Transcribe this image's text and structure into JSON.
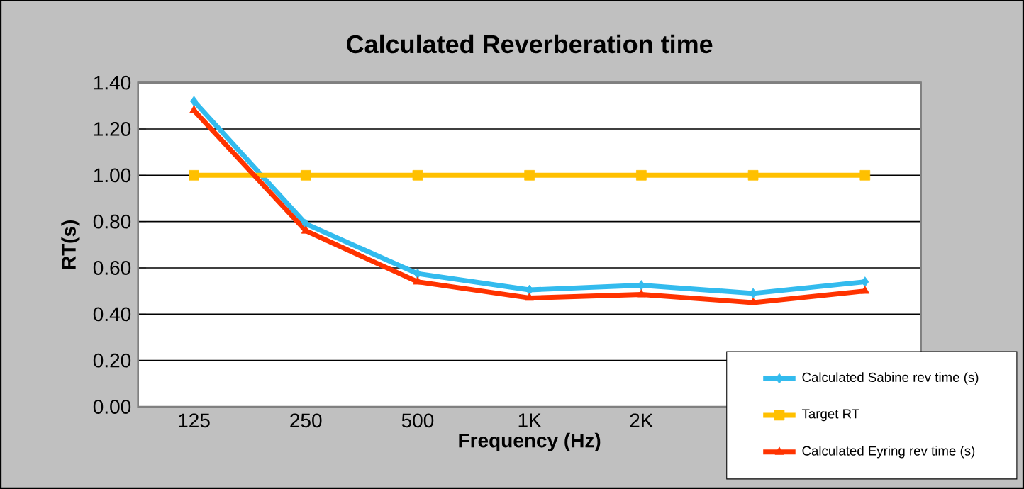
{
  "chart_data": {
    "type": "line",
    "title": "Calculated Reverberation time",
    "xlabel": "Frequency (Hz)",
    "ylabel": "RT(s)",
    "categories": [
      "125",
      "250",
      "500",
      "1K",
      "2K",
      null,
      null
    ],
    "series": [
      {
        "name": "Calculated Sabine rev time (s)",
        "color": "#33bbee",
        "marker": "diamond",
        "values": [
          1.32,
          0.79,
          0.575,
          0.505,
          0.525,
          0.49,
          0.54
        ]
      },
      {
        "name": "Target RT",
        "color": "#ffc000",
        "marker": "square",
        "values": [
          1.0,
          1.0,
          1.0,
          1.0,
          1.0,
          1.0,
          1.0
        ]
      },
      {
        "name": "Calculated Eyring rev time (s)",
        "color": "#ff3300",
        "marker": "triangle",
        "values": [
          1.28,
          0.76,
          0.54,
          0.47,
          0.485,
          0.45,
          0.5
        ]
      }
    ],
    "ylim": [
      0,
      1.4
    ],
    "yticks": [
      {
        "value": 0,
        "label": "0.00"
      },
      {
        "value": 0.2,
        "label": "0.20"
      },
      {
        "value": 0.4,
        "label": "0.40"
      },
      {
        "value": 0.6,
        "label": "0.60"
      },
      {
        "value": 0.8,
        "label": "0.80"
      },
      {
        "value": 1.0,
        "label": "1.00"
      },
      {
        "value": 1.2,
        "label": "1.20"
      },
      {
        "value": 1.4,
        "label": "1.40"
      }
    ],
    "grid": "y",
    "legend": "bottom right",
    "line_style": "solid"
  }
}
